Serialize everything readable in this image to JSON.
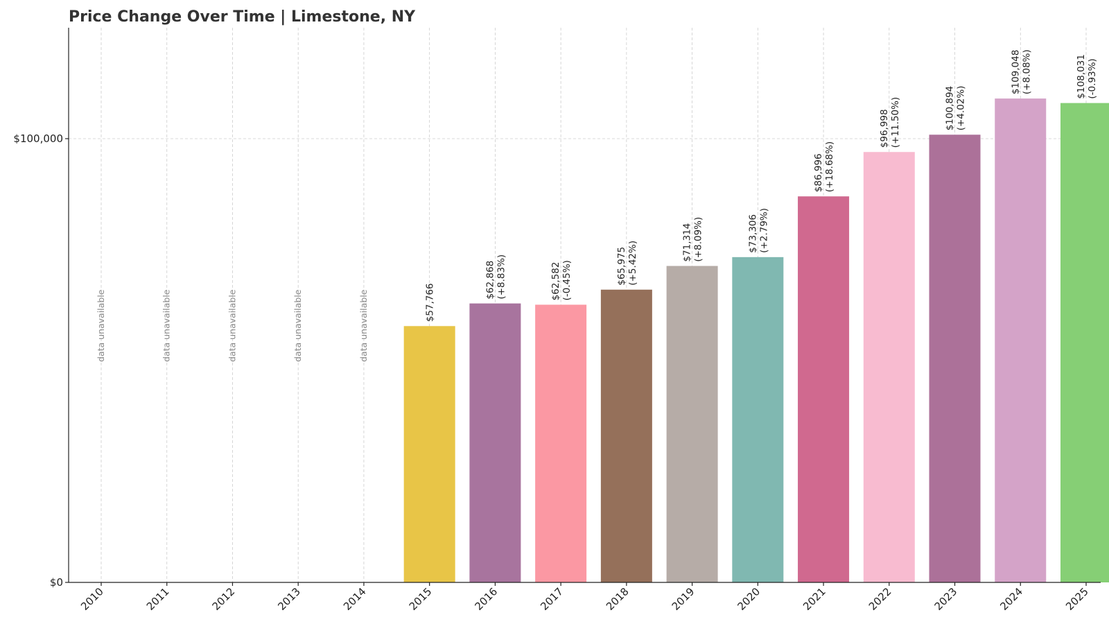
{
  "chart_data": {
    "type": "bar",
    "title": "Price Change Over Time | Limestone, NY",
    "xlabel": "",
    "ylabel": "",
    "categories": [
      "2010",
      "2011",
      "2012",
      "2013",
      "2014",
      "2015",
      "2016",
      "2017",
      "2018",
      "2019",
      "2020",
      "2021",
      "2022",
      "2023",
      "2024",
      "2025"
    ],
    "values": [
      null,
      null,
      null,
      null,
      null,
      57766,
      62868,
      62582,
      65975,
      71314,
      73306,
      86996,
      96998,
      100894,
      109048,
      108031
    ],
    "value_labels": [
      "",
      "",
      "",
      "",
      "",
      "$57,766",
      "$62,868",
      "$62,582",
      "$65,975",
      "$71,314",
      "$73,306",
      "$86,996",
      "$96,998",
      "$100,894",
      "$109,048",
      "$108,031"
    ],
    "change_labels": [
      "",
      "",
      "",
      "",
      "",
      "",
      "(+8.83%)",
      "(-0.45%)",
      "(+5.42%)",
      "(+8.09%)",
      "(+2.79%)",
      "(+18.68%)",
      "(+11.50%)",
      "(+4.02%)",
      "(+8.08%)",
      "(-0.93%)"
    ],
    "unavailable_label": "data unavailable",
    "colors": [
      "#e8c547",
      "#a8749e",
      "#fb98a3",
      "#95705a",
      "#b6aca7",
      "#80b8b1",
      "#d0698f",
      "#f8bbd0",
      "#ac7199",
      "#d4a3c8",
      "#86cf75"
    ],
    "yticks": [
      0,
      100000
    ],
    "ytick_labels": [
      "$0",
      "$100,000"
    ],
    "ylim": [
      0,
      125000
    ],
    "grid": true
  }
}
